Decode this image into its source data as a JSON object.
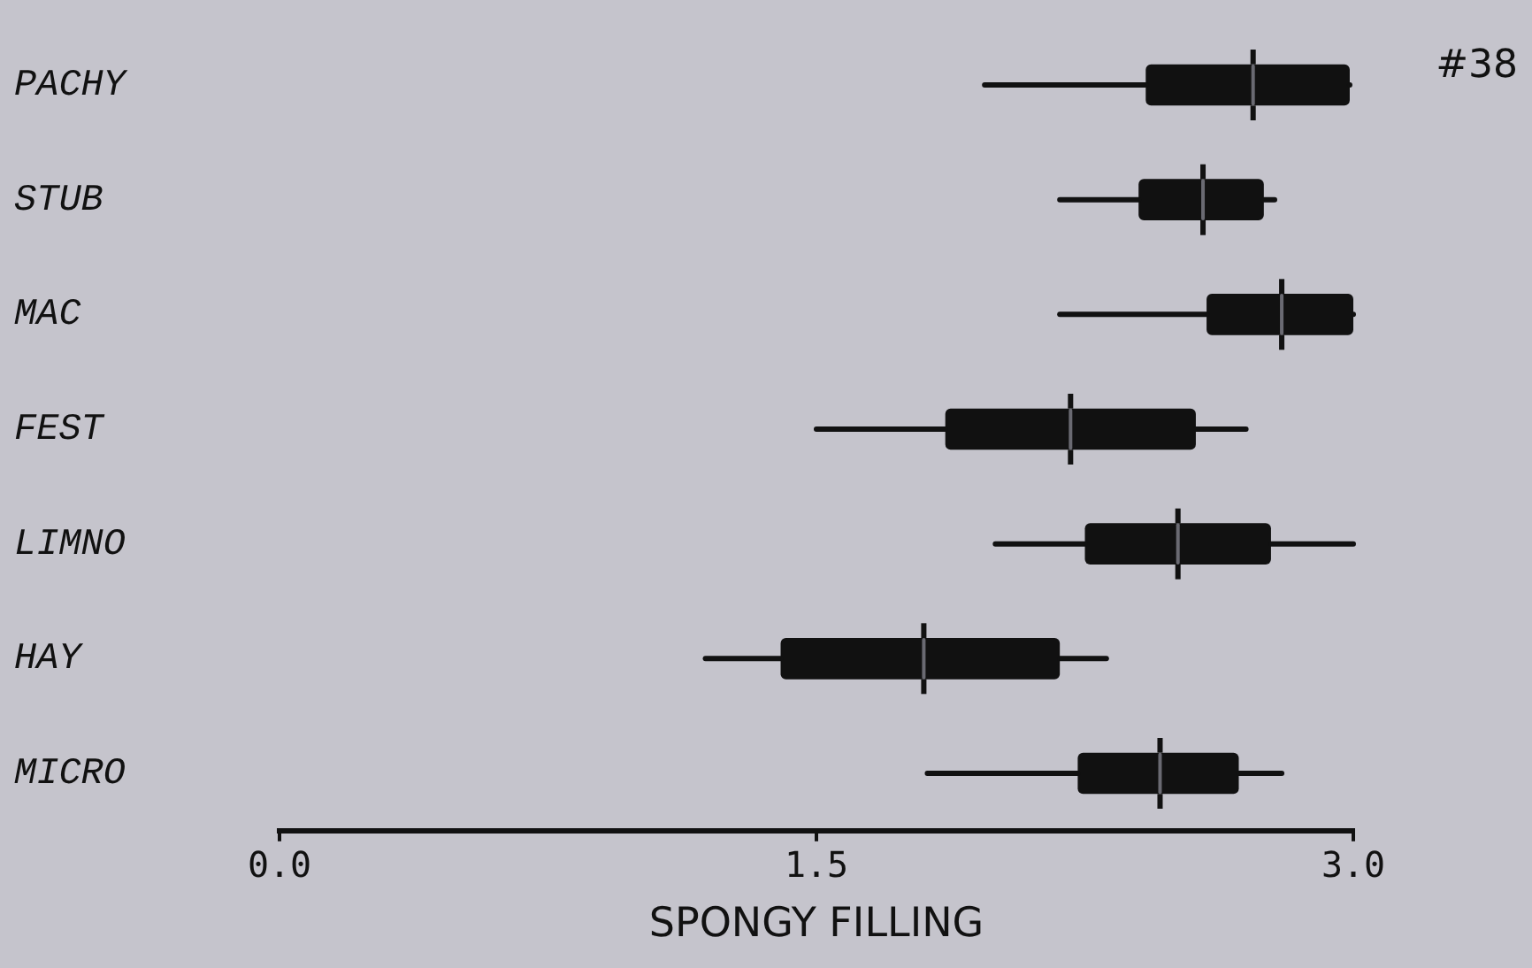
{
  "chart_data": {
    "type": "box",
    "orientation": "horizontal",
    "xlabel": "SPONGY FILLING",
    "annotations": [
      "#38"
    ],
    "categories": [
      "PACHY",
      "STUB",
      "MAC",
      "FEST",
      "LIMNO",
      "HAY",
      "MICRO"
    ],
    "boxes": [
      {
        "low": 1.97,
        "q1": 2.42,
        "median": 2.72,
        "q3": 2.99,
        "high": 2.99
      },
      {
        "low": 2.18,
        "q1": 2.4,
        "median": 2.58,
        "q3": 2.75,
        "high": 2.78
      },
      {
        "low": 2.18,
        "q1": 2.59,
        "median": 2.8,
        "q3": 3.0,
        "high": 3.0
      },
      {
        "low": 1.5,
        "q1": 1.86,
        "median": 2.21,
        "q3": 2.56,
        "high": 2.7
      },
      {
        "low": 2.0,
        "q1": 2.25,
        "median": 2.51,
        "q3": 2.77,
        "high": 3.0
      },
      {
        "low": 1.19,
        "q1": 1.4,
        "median": 1.8,
        "q3": 2.18,
        "high": 2.31
      },
      {
        "low": 1.81,
        "q1": 2.23,
        "median": 2.46,
        "q3": 2.68,
        "high": 2.8
      }
    ],
    "color": "#111111",
    "xlim": [
      0,
      3
    ],
    "xticks": [
      {
        "value": 0,
        "label": "0.0"
      },
      {
        "value": 1.5,
        "label": "1.5"
      },
      {
        "value": 3,
        "label": "3.0"
      }
    ],
    "grid": false,
    "legend": false
  }
}
